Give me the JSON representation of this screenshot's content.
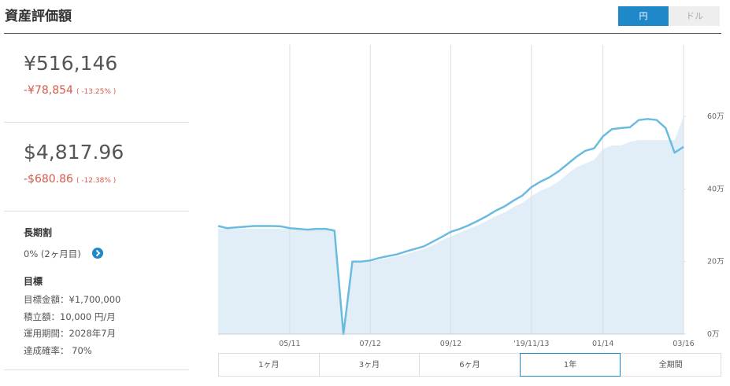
{
  "header": {
    "title": "資産評価額",
    "currency_toggle": [
      "円",
      "ドル"
    ]
  },
  "summary": {
    "jpy": {
      "value": "¥516,146",
      "change": "-¥78,854",
      "change_pct": "( -13.25% )"
    },
    "usd": {
      "value": "$4,817.96",
      "change": "-$680.86",
      "change_pct": "( -12.38% )"
    }
  },
  "discount": {
    "title": "長期割",
    "text": "0% (2ヶ月目)"
  },
  "goal": {
    "title": "目標",
    "items": [
      "目標金額：¥1,700,000",
      "積立額：10,000 円/月",
      "運用期間：2028年7月",
      "達成確率： 70%"
    ]
  },
  "periods": [
    "1ヶ月",
    "3ヶ月",
    "6ヶ月",
    "1年",
    "全期間"
  ],
  "selected_period": 3,
  "chart_data": {
    "type": "line",
    "categories": [
      null,
      null,
      null,
      null,
      null,
      null,
      null,
      null,
      "05/11",
      null,
      null,
      null,
      null,
      null,
      null,
      null,
      null,
      "07/12",
      null,
      null,
      null,
      null,
      null,
      null,
      null,
      null,
      "09/12",
      null,
      null,
      null,
      null,
      null,
      null,
      null,
      null,
      "'19/11/13",
      null,
      null,
      null,
      null,
      null,
      null,
      null,
      "01/14",
      null,
      null,
      null,
      null,
      null,
      null,
      null,
      null,
      "03/16"
    ],
    "series": [
      {
        "type": "area",
        "color": "#e1eef8",
        "values": [
          290000,
          290000,
          290000,
          290000,
          290000,
          290000,
          290000,
          290000,
          290000,
          290000,
          290000,
          290000,
          290000,
          290000,
          0,
          200000,
          200000,
          200000,
          205000,
          210000,
          215000,
          220000,
          228000,
          235000,
          245000,
          258000,
          270000,
          280000,
          290000,
          300000,
          312000,
          325000,
          335000,
          350000,
          362000,
          380000,
          395000,
          405000,
          420000,
          440000,
          460000,
          470000,
          480000,
          510000,
          520000,
          520000,
          530000,
          535000,
          535000,
          535000,
          535000,
          535000,
          600000
        ]
      },
      {
        "type": "line",
        "color": "#6bbbe0",
        "values": [
          298000,
          292000,
          294000,
          296000,
          298000,
          298000,
          298000,
          297000,
          292000,
          290000,
          288000,
          290000,
          290000,
          285000,
          0,
          200000,
          200000,
          203000,
          210000,
          215000,
          220000,
          228000,
          235000,
          242000,
          255000,
          268000,
          282000,
          290000,
          300000,
          312000,
          325000,
          340000,
          352000,
          368000,
          382000,
          405000,
          420000,
          432000,
          448000,
          468000,
          488000,
          505000,
          512000,
          545000,
          565000,
          568000,
          570000,
          590000,
          593000,
          590000,
          568000,
          500000,
          516146
        ]
      }
    ],
    "ylim": [
      0,
      780000
    ],
    "yticks": [
      {
        "value": 0,
        "label": "0万"
      },
      {
        "value": 200000,
        "label": "20万"
      },
      {
        "value": 400000,
        "label": "40万"
      },
      {
        "value": 600000,
        "label": "60万"
      }
    ],
    "grid": true
  }
}
